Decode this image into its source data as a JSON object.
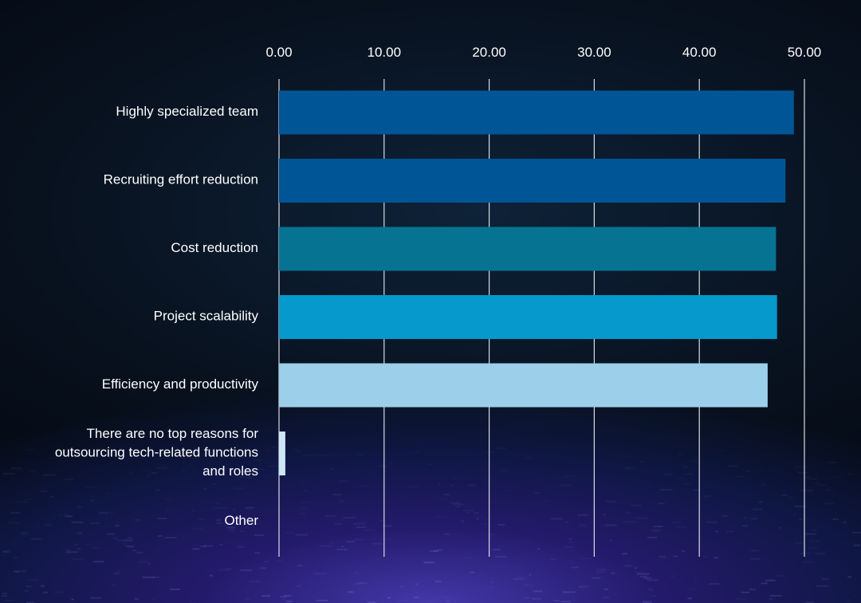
{
  "chart_data": {
    "type": "bar",
    "orientation": "horizontal",
    "categories": [
      "Highly specialized team",
      "Recruiting effort reduction",
      "Cost reduction",
      "Project scalability",
      "Efficiency and productivity",
      "There are no top reasons for outsourcing tech-related functions and roles",
      "Other"
    ],
    "category_label_lines": [
      [
        "Highly specialized team"
      ],
      [
        "Recruiting effort reduction"
      ],
      [
        "Cost reduction"
      ],
      [
        "Project scalability"
      ],
      [
        "Efficiency and productivity"
      ],
      [
        "There are no top reasons for",
        "outsourcing tech-related functions",
        "and roles"
      ],
      [
        "Other"
      ]
    ],
    "values": [
      49.0,
      48.2,
      47.3,
      47.4,
      46.5,
      0.6,
      0
    ],
    "colors": [
      "#005596",
      "#005596",
      "#077393",
      "#0599cc",
      "#9ccfea",
      "#cfe6f6",
      "#cfe6f6"
    ],
    "xlim": [
      0,
      50
    ],
    "xticks": [
      "0.00",
      "10.00",
      "20.00",
      "30.00",
      "40.00",
      "50.00"
    ],
    "x_axis_position": "top",
    "grid": true,
    "legend": "none",
    "title": "",
    "xlabel": "",
    "ylabel": ""
  }
}
